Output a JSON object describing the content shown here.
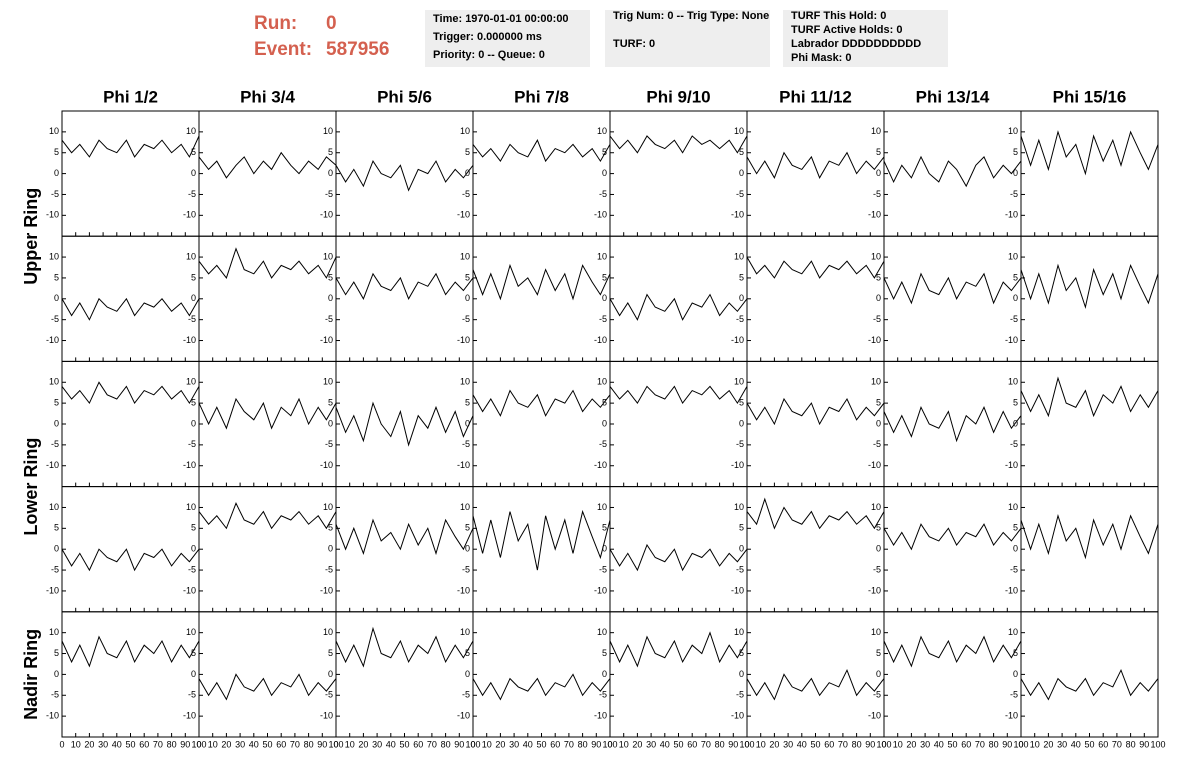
{
  "header": {
    "run": {
      "label": "Run:",
      "value": 0
    },
    "event": {
      "label": "Event:",
      "value": 587956
    },
    "boxes": [
      [
        "Time: 1970-01-01 00:00:00",
        "Trigger: 0.000000 ms",
        "Priority: 0 -- Queue: 0"
      ],
      [
        "Trig Num: 0 -- Trig Type: None",
        "TURF: 0"
      ],
      [
        "TURF This Hold: 0",
        "TURF Active Holds: 0",
        "Labrador DDDDDDDDDD",
        "Phi Mask: 0"
      ]
    ]
  },
  "chart_data": {
    "type": "line",
    "color": "#000000",
    "columns": [
      "Phi 1/2",
      "Phi 3/4",
      "Phi 5/6",
      "Phi 7/8",
      "Phi 9/10",
      "Phi 11/12",
      "Phi 13/14",
      "Phi 15/16"
    ],
    "ring_labels": [
      "Upper Ring",
      "Lower Ring",
      "Nadir Ring"
    ],
    "xlim": [
      0,
      100
    ],
    "xticks": [
      0,
      10,
      20,
      30,
      40,
      50,
      60,
      70,
      80,
      90,
      100
    ],
    "ylim": [
      -15,
      15
    ],
    "yticks": [
      -10,
      -5,
      0,
      5,
      10
    ],
    "x": [
      0,
      7,
      13,
      20,
      27,
      33,
      40,
      47,
      53,
      60,
      67,
      73,
      80,
      87,
      93,
      100
    ],
    "values": [
      [
        [
          8,
          5,
          7,
          4,
          8,
          6,
          5,
          8,
          4,
          7,
          6,
          8,
          5,
          7,
          4,
          9
        ],
        [
          4,
          1,
          3,
          -1,
          2,
          4,
          0,
          3,
          1,
          5,
          2,
          0,
          3,
          1,
          4,
          2
        ],
        [
          2,
          -2,
          1,
          -3,
          3,
          0,
          -1,
          2,
          -4,
          1,
          0,
          3,
          -2,
          1,
          -1,
          2
        ],
        [
          7,
          4,
          6,
          3,
          7,
          5,
          4,
          8,
          3,
          6,
          5,
          7,
          4,
          6,
          3,
          7
        ],
        [
          9,
          6,
          8,
          5,
          9,
          7,
          6,
          8,
          5,
          9,
          7,
          8,
          6,
          8,
          5,
          9
        ],
        [
          4,
          0,
          3,
          -1,
          5,
          2,
          1,
          4,
          -1,
          3,
          2,
          5,
          0,
          3,
          1,
          4
        ],
        [
          3,
          -2,
          2,
          -1,
          4,
          0,
          -2,
          3,
          1,
          -3,
          2,
          4,
          -1,
          2,
          0,
          3
        ],
        [
          9,
          2,
          8,
          1,
          10,
          4,
          7,
          0,
          9,
          3,
          8,
          2,
          10,
          5,
          1,
          7
        ]
      ],
      [
        [
          0,
          -4,
          -1,
          -5,
          0,
          -2,
          -3,
          0,
          -4,
          -1,
          -2,
          0,
          -3,
          -1,
          -4,
          0
        ],
        [
          9,
          6,
          8,
          5,
          12,
          7,
          6,
          9,
          5,
          8,
          7,
          9,
          6,
          8,
          5,
          10
        ],
        [
          5,
          1,
          4,
          0,
          6,
          3,
          2,
          5,
          0,
          4,
          3,
          6,
          1,
          4,
          2,
          5
        ],
        [
          7,
          1,
          6,
          0,
          8,
          3,
          5,
          1,
          7,
          2,
          6,
          0,
          8,
          4,
          1,
          6
        ],
        [
          0,
          -4,
          -1,
          -5,
          1,
          -2,
          -3,
          0,
          -5,
          -1,
          -2,
          1,
          -4,
          -1,
          -3,
          0
        ],
        [
          10,
          6,
          8,
          5,
          9,
          7,
          6,
          9,
          5,
          8,
          7,
          9,
          6,
          8,
          5,
          9
        ],
        [
          5,
          0,
          4,
          -1,
          6,
          2,
          1,
          5,
          0,
          4,
          3,
          6,
          -1,
          4,
          2,
          5
        ],
        [
          7,
          0,
          6,
          -1,
          8,
          2,
          5,
          -2,
          7,
          1,
          6,
          0,
          8,
          3,
          -1,
          6
        ]
      ],
      [
        [
          9,
          6,
          8,
          5,
          10,
          7,
          6,
          9,
          5,
          8,
          7,
          9,
          6,
          8,
          5,
          9
        ],
        [
          5,
          0,
          4,
          -1,
          6,
          3,
          1,
          5,
          -1,
          4,
          2,
          6,
          0,
          4,
          1,
          5
        ],
        [
          4,
          -2,
          2,
          -4,
          5,
          0,
          -3,
          3,
          -5,
          2,
          -1,
          4,
          -2,
          3,
          -3,
          2
        ],
        [
          7,
          3,
          6,
          2,
          8,
          5,
          4,
          7,
          2,
          6,
          5,
          8,
          3,
          6,
          4,
          7
        ],
        [
          9,
          6,
          8,
          5,
          9,
          7,
          6,
          9,
          5,
          8,
          7,
          9,
          6,
          8,
          5,
          9
        ],
        [
          5,
          1,
          4,
          0,
          6,
          3,
          2,
          5,
          0,
          4,
          3,
          6,
          1,
          4,
          2,
          5
        ],
        [
          3,
          -2,
          2,
          -3,
          4,
          0,
          -1,
          3,
          -4,
          2,
          0,
          4,
          -2,
          3,
          -1,
          2
        ],
        [
          8,
          3,
          7,
          2,
          11,
          5,
          4,
          8,
          2,
          7,
          5,
          9,
          3,
          7,
          4,
          8
        ]
      ],
      [
        [
          0,
          -4,
          -1,
          -5,
          0,
          -2,
          -3,
          0,
          -5,
          -1,
          -2,
          0,
          -4,
          -1,
          -3,
          0
        ],
        [
          9,
          6,
          8,
          5,
          11,
          7,
          6,
          9,
          5,
          8,
          7,
          9,
          6,
          8,
          5,
          9
        ],
        [
          6,
          0,
          5,
          -1,
          7,
          2,
          4,
          0,
          6,
          1,
          5,
          -1,
          7,
          3,
          0,
          5
        ],
        [
          8,
          -1,
          7,
          -2,
          9,
          2,
          6,
          -5,
          8,
          0,
          7,
          -1,
          9,
          3,
          -2,
          7
        ],
        [
          0,
          -4,
          -1,
          -5,
          1,
          -2,
          -3,
          0,
          -5,
          -1,
          -2,
          0,
          -4,
          -1,
          -3,
          0
        ],
        [
          9,
          6,
          12,
          5,
          10,
          7,
          6,
          9,
          5,
          8,
          7,
          9,
          6,
          8,
          5,
          9
        ],
        [
          5,
          1,
          4,
          0,
          6,
          3,
          2,
          5,
          1,
          4,
          3,
          6,
          1,
          4,
          2,
          5
        ],
        [
          7,
          0,
          6,
          -1,
          8,
          2,
          5,
          -2,
          7,
          1,
          6,
          0,
          8,
          3,
          -1,
          6
        ]
      ],
      [
        [
          8,
          3,
          7,
          2,
          9,
          5,
          4,
          8,
          3,
          7,
          5,
          8,
          3,
          7,
          4,
          8
        ],
        [
          -1,
          -5,
          -2,
          -6,
          0,
          -3,
          -4,
          -1,
          -5,
          -2,
          -3,
          0,
          -5,
          -2,
          -4,
          -1
        ],
        [
          8,
          3,
          7,
          2,
          11,
          5,
          4,
          8,
          3,
          7,
          5,
          9,
          3,
          7,
          4,
          8
        ],
        [
          -1,
          -5,
          -2,
          -6,
          -1,
          -3,
          -4,
          -1,
          -5,
          -2,
          -3,
          0,
          -5,
          -2,
          -4,
          -1
        ],
        [
          8,
          3,
          7,
          2,
          9,
          5,
          4,
          8,
          3,
          7,
          5,
          10,
          3,
          7,
          4,
          8
        ],
        [
          -1,
          -5,
          -2,
          -6,
          0,
          -3,
          -4,
          -1,
          -5,
          -2,
          -3,
          1,
          -5,
          -2,
          -4,
          -1
        ],
        [
          8,
          3,
          7,
          2,
          9,
          5,
          4,
          8,
          3,
          7,
          5,
          9,
          3,
          7,
          4,
          8
        ],
        [
          -1,
          -5,
          -2,
          -6,
          -1,
          -3,
          -4,
          -1,
          -5,
          -2,
          -3,
          1,
          -5,
          -2,
          -4,
          -1
        ]
      ]
    ]
  }
}
